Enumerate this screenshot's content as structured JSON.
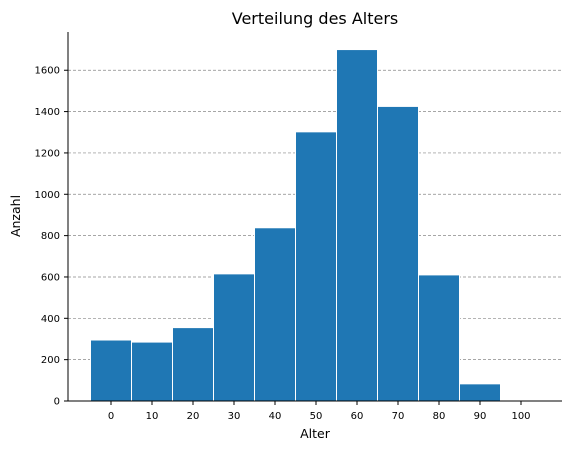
{
  "chart_data": {
    "type": "bar",
    "title": "Verteilung des Alters",
    "xlabel": "Alter",
    "ylabel": "Anzahl",
    "categories": [
      "0",
      "10",
      "20",
      "30",
      "40",
      "50",
      "60",
      "70",
      "80",
      "90",
      "100"
    ],
    "values": [
      295,
      285,
      355,
      615,
      838,
      1302,
      1700,
      1425,
      610,
      83,
      3
    ],
    "y_ticks": [
      0,
      200,
      400,
      600,
      800,
      1000,
      1200,
      1400,
      1600
    ],
    "ylim": [
      0,
      1785
    ],
    "grid": "horizontal-dashed",
    "bar_color": "#1f77b4"
  }
}
